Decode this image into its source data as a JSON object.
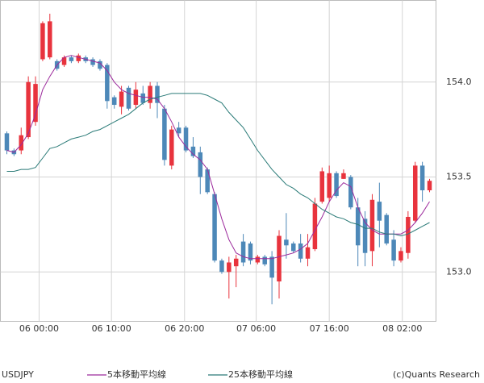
{
  "chart_data": {
    "type": "candlestick",
    "symbol": "USDJPY",
    "copyright": "(c)Quants Research",
    "up_color": "#e8333d",
    "down_color": "#4d88b8",
    "open": [
      153.73,
      153.64,
      153.64,
      153.71,
      153.79,
      154.12,
      154.13,
      154.11,
      154.09,
      154.13,
      154.11,
      154.13,
      154.12,
      154.11,
      154.09,
      153.92,
      153.87,
      153.97,
      153.88,
      153.94,
      153.89,
      153.98,
      153.86,
      153.56,
      153.76,
      153.76,
      153.66,
      153.63,
      153.54,
      153.41,
      153.06,
      153.0,
      153.03,
      153.16,
      153.15,
      153.05,
      153.08,
      153.08,
      152.95,
      153.17,
      153.15,
      153.15,
      153.07,
      153.12,
      153.37,
      153.39,
      153.52,
      153.49,
      153.5,
      153.34,
      153.28,
      153.11,
      153.37,
      153.3,
      153.17,
      153.06,
      153.1,
      153.27,
      153.56,
      153.43
    ],
    "high": [
      153.74,
      153.65,
      153.76,
      154.03,
      154.03,
      154.32,
      154.36,
      154.12,
      154.14,
      154.14,
      154.15,
      154.14,
      154.13,
      154.12,
      154.1,
      153.93,
      153.98,
      153.98,
      154.0,
      153.98,
      154.0,
      154.0,
      153.88,
      153.77,
      153.79,
      153.77,
      153.71,
      153.66,
      153.55,
      153.42,
      153.07,
      153.08,
      153.09,
      153.2,
      153.16,
      153.09,
      153.09,
      153.11,
      153.22,
      153.31,
      153.16,
      153.2,
      153.2,
      153.39,
      153.55,
      153.56,
      153.53,
      153.54,
      153.51,
      153.39,
      153.32,
      153.41,
      153.47,
      153.31,
      153.22,
      153.13,
      153.32,
      153.58,
      153.58,
      153.49
    ],
    "low": [
      153.62,
      153.61,
      153.62,
      153.7,
      153.77,
      154.11,
      154.12,
      154.06,
      154.08,
      154.1,
      154.1,
      154.1,
      154.08,
      154.06,
      153.86,
      153.86,
      153.83,
      153.85,
      153.86,
      153.88,
      153.86,
      153.81,
      153.56,
      153.54,
      153.71,
      153.63,
      153.6,
      153.41,
      153.41,
      153.05,
      152.99,
      152.86,
      152.92,
      153.03,
      153.04,
      153.04,
      153.03,
      152.83,
      152.86,
      153.07,
      153.1,
      153.05,
      153.03,
      153.11,
      153.36,
      153.37,
      153.39,
      153.49,
      153.33,
      153.03,
      153.03,
      153.03,
      153.13,
      153.14,
      153.03,
      153.05,
      153.07,
      153.26,
      153.37,
      153.42
    ],
    "close": [
      153.64,
      153.62,
      153.72,
      154.0,
      153.99,
      154.31,
      154.32,
      154.07,
      154.13,
      154.11,
      154.14,
      154.11,
      154.09,
      154.07,
      153.9,
      153.88,
      153.95,
      153.86,
      153.96,
      153.89,
      153.98,
      153.89,
      153.59,
      153.75,
      153.73,
      153.64,
      153.61,
      153.5,
      153.42,
      153.06,
      153.0,
      153.05,
      153.07,
      153.05,
      153.06,
      153.08,
      153.04,
      152.97,
      153.19,
      153.14,
      153.11,
      153.07,
      153.13,
      153.36,
      153.53,
      153.52,
      153.4,
      153.52,
      153.34,
      153.14,
      153.1,
      153.38,
      153.27,
      153.15,
      153.06,
      153.11,
      153.29,
      153.56,
      153.43,
      153.48
    ],
    "series": [
      {
        "name": "5本移動平均線",
        "color": "#9c2a9c",
        "values": [
          153.64,
          153.63,
          153.67,
          153.73,
          153.83,
          153.96,
          154.03,
          154.09,
          154.13,
          154.14,
          154.13,
          154.12,
          154.11,
          154.1,
          154.06,
          154.0,
          153.96,
          153.94,
          153.93,
          153.92,
          153.92,
          153.91,
          153.86,
          153.79,
          153.71,
          153.66,
          153.62,
          153.59,
          153.54,
          153.41,
          153.28,
          153.17,
          153.1,
          153.08,
          153.07,
          153.07,
          153.07,
          153.07,
          153.08,
          153.09,
          153.1,
          153.12,
          153.15,
          153.22,
          153.29,
          153.37,
          153.43,
          153.47,
          153.45,
          153.34,
          153.26,
          153.22,
          153.2,
          153.2,
          153.2,
          153.2,
          153.22,
          153.26,
          153.31,
          153.37
        ]
      },
      {
        "name": "25本移動平均線",
        "color": "#2b7b78",
        "values": [
          153.53,
          153.53,
          153.54,
          153.54,
          153.55,
          153.6,
          153.65,
          153.66,
          153.68,
          153.7,
          153.71,
          153.72,
          153.74,
          153.75,
          153.77,
          153.79,
          153.81,
          153.83,
          153.86,
          153.89,
          153.91,
          153.92,
          153.93,
          153.94,
          153.94,
          153.94,
          153.94,
          153.94,
          153.93,
          153.91,
          153.89,
          153.84,
          153.8,
          153.76,
          153.7,
          153.64,
          153.59,
          153.54,
          153.5,
          153.46,
          153.44,
          153.41,
          153.39,
          153.36,
          153.33,
          153.31,
          153.29,
          153.28,
          153.26,
          153.25,
          153.23,
          153.23,
          153.21,
          153.2,
          153.2,
          153.19,
          153.2,
          153.22,
          153.24,
          153.26
        ]
      }
    ],
    "xlim": [
      -0.9,
      59.9
    ],
    "xticks": [
      {
        "value": 4.5,
        "label": "06 00:00"
      },
      {
        "value": 14.6,
        "label": "06 10:00"
      },
      {
        "value": 24.8,
        "label": "06 20:00"
      },
      {
        "value": 34.8,
        "label": "07 06:00"
      },
      {
        "value": 45.0,
        "label": "07 16:00"
      },
      {
        "value": 55.2,
        "label": "08 02:00"
      }
    ],
    "ylim": [
      152.74,
      154.43
    ],
    "yticks": [
      {
        "value": 153.0,
        "label": "153.0"
      },
      {
        "value": 153.5,
        "label": "153.5"
      },
      {
        "value": 154.0,
        "label": "154.0"
      }
    ],
    "grid": true
  }
}
